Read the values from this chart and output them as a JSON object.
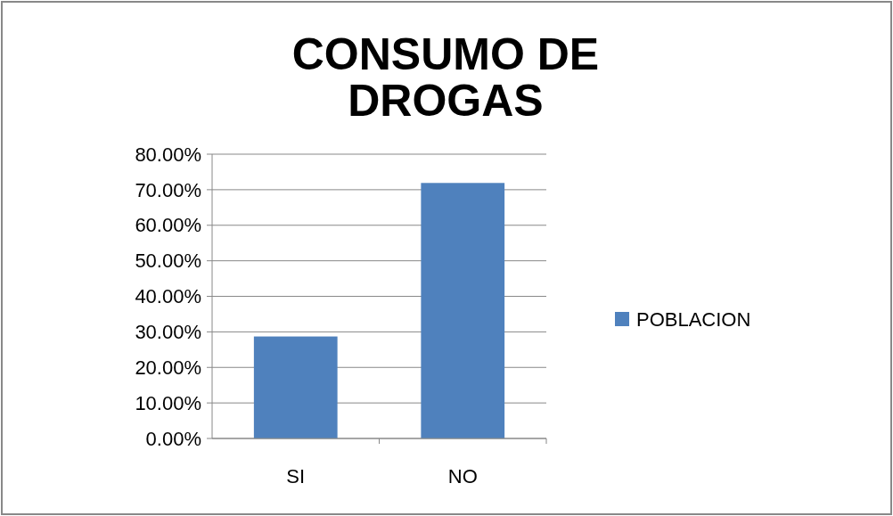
{
  "chart_data": {
    "type": "bar",
    "title": "CONSUMO DE DROGAS",
    "categories": [
      "SI",
      "NO"
    ],
    "series": [
      {
        "name": "POBLACION",
        "color": "#4f81bd",
        "values": [
          28.7,
          71.9
        ]
      }
    ],
    "ylim": [
      0,
      80
    ],
    "yticks": [
      {
        "value": 0,
        "label": "0.00%"
      },
      {
        "value": 10,
        "label": "10.00%"
      },
      {
        "value": 20,
        "label": "20.00%"
      },
      {
        "value": 30,
        "label": "30.00%"
      },
      {
        "value": 40,
        "label": "40.00%"
      },
      {
        "value": 50,
        "label": "50.00%"
      },
      {
        "value": 60,
        "label": "60.00%"
      },
      {
        "value": 70,
        "label": "70.00%"
      },
      {
        "value": 80,
        "label": "80.00%"
      }
    ],
    "grid": "y",
    "legend": "right"
  }
}
